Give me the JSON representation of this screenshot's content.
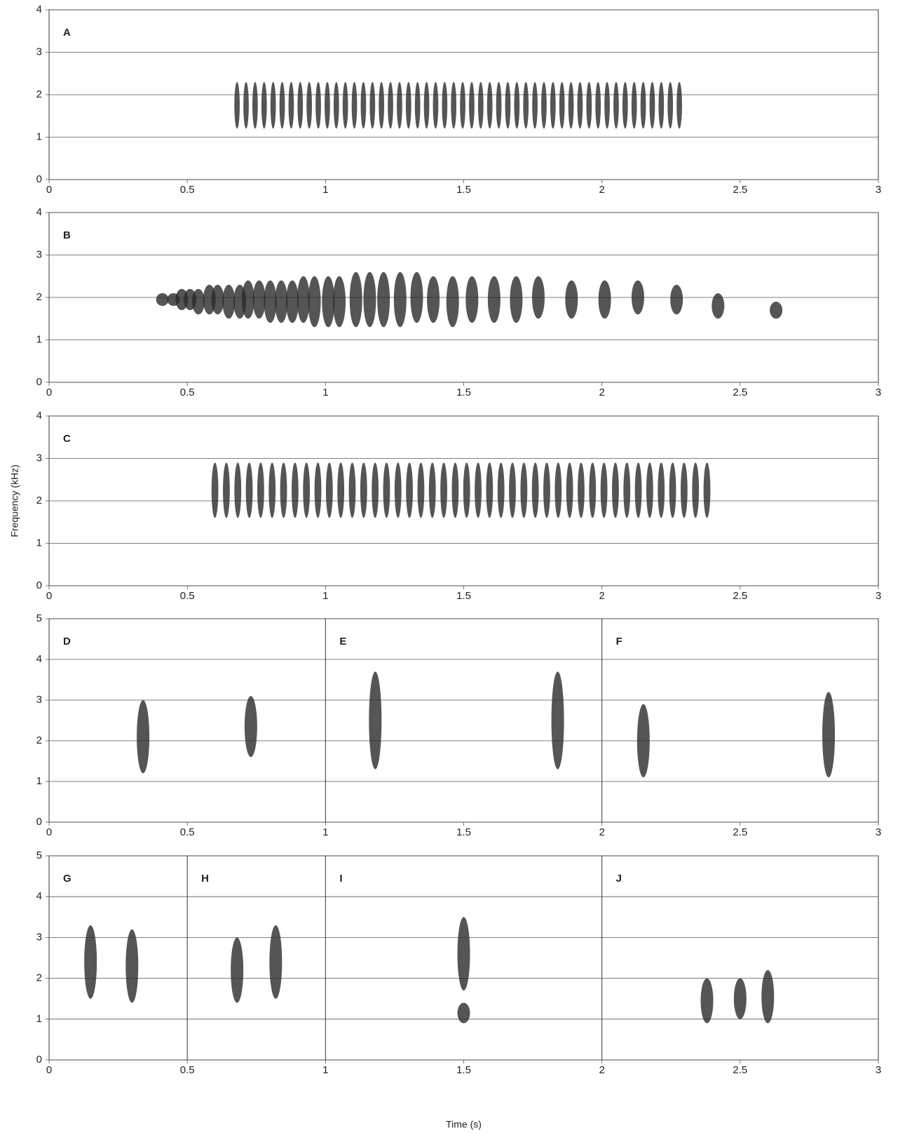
{
  "chart_data": [
    {
      "type": "spectrogram",
      "panels": [
        "A"
      ],
      "xlim": [
        0,
        3
      ],
      "xticks": [
        0,
        0.5,
        1,
        1.5,
        2,
        2.5,
        3
      ],
      "ylim": [
        0,
        4
      ],
      "yticks": [
        0,
        1,
        2,
        3,
        4
      ],
      "trills": [
        {
          "t": [
            0.68,
            2.28
          ],
          "count": 50,
          "f": [
            1.2,
            2.3
          ]
        }
      ]
    },
    {
      "type": "spectrogram",
      "panels": [
        "B"
      ],
      "xlim": [
        0,
        3
      ],
      "xticks": [
        0,
        0.5,
        1,
        1.5,
        2,
        2.5,
        3
      ],
      "ylim": [
        0,
        4
      ],
      "yticks": [
        0,
        1,
        2,
        3,
        4
      ],
      "notes": {
        "t": [
          0.41,
          0.45,
          0.48,
          0.51,
          0.54,
          0.58,
          0.61,
          0.65,
          0.69,
          0.72,
          0.76,
          0.8,
          0.84,
          0.88,
          0.92,
          0.96,
          1.01,
          1.05,
          1.11,
          1.16,
          1.21,
          1.27,
          1.33,
          1.39,
          1.46,
          1.53,
          1.61,
          1.69,
          1.77,
          1.89,
          2.01,
          2.13,
          2.27,
          2.42,
          2.63
        ],
        "f_low": [
          1.8,
          1.8,
          1.7,
          1.7,
          1.6,
          1.6,
          1.6,
          1.5,
          1.5,
          1.5,
          1.5,
          1.4,
          1.4,
          1.4,
          1.4,
          1.3,
          1.3,
          1.3,
          1.3,
          1.3,
          1.3,
          1.3,
          1.4,
          1.4,
          1.3,
          1.4,
          1.4,
          1.4,
          1.5,
          1.5,
          1.5,
          1.6,
          1.6,
          1.5,
          1.5
        ],
        "f_high": [
          2.1,
          2.1,
          2.2,
          2.2,
          2.2,
          2.3,
          2.3,
          2.3,
          2.3,
          2.4,
          2.4,
          2.4,
          2.4,
          2.4,
          2.5,
          2.5,
          2.5,
          2.5,
          2.6,
          2.6,
          2.6,
          2.6,
          2.6,
          2.5,
          2.5,
          2.5,
          2.5,
          2.5,
          2.5,
          2.4,
          2.4,
          2.4,
          2.3,
          2.1,
          1.9
        ]
      }
    },
    {
      "type": "spectrogram",
      "panels": [
        "C"
      ],
      "xlim": [
        0,
        3
      ],
      "xticks": [
        0,
        0.5,
        1,
        1.5,
        2,
        2.5,
        3
      ],
      "ylim": [
        0,
        4
      ],
      "yticks": [
        0,
        1,
        2,
        3,
        4
      ],
      "ylabel": "Frequency (kHz)",
      "trills": [
        {
          "t": [
            0.6,
            2.38
          ],
          "count": 44,
          "f": [
            1.6,
            2.9
          ]
        }
      ]
    },
    {
      "type": "spectrogram",
      "panels": [
        "D",
        "E",
        "F"
      ],
      "dividers": [
        1,
        2
      ],
      "xlim": [
        0,
        3
      ],
      "xticks": [
        0,
        0.5,
        1,
        1.5,
        2,
        2.5,
        3
      ],
      "ylim": [
        0,
        5
      ],
      "yticks": [
        0,
        1,
        2,
        3,
        4,
        5
      ],
      "notes": {
        "t": [
          0.34,
          0.73,
          1.18,
          1.84,
          2.15,
          2.82
        ],
        "f_low": [
          1.2,
          1.6,
          1.3,
          1.3,
          1.1,
          1.1
        ],
        "f_high": [
          3.0,
          3.1,
          3.7,
          3.7,
          2.9,
          3.2
        ]
      }
    },
    {
      "type": "spectrogram",
      "panels": [
        "G",
        "H",
        "I",
        "J"
      ],
      "dividers": [
        0.5,
        1,
        2
      ],
      "xlim": [
        0,
        3
      ],
      "xticks": [
        0,
        0.5,
        1,
        1.5,
        2,
        2.5,
        3
      ],
      "ylim": [
        0,
        5
      ],
      "yticks": [
        0,
        1,
        2,
        3,
        4,
        5
      ],
      "xlabel": "Time (s)",
      "notes": {
        "t": [
          0.15,
          0.3,
          0.68,
          0.82,
          1.5,
          1.5,
          2.38,
          2.5,
          2.6
        ],
        "f_low": [
          1.5,
          1.4,
          1.4,
          1.5,
          1.7,
          0.9,
          0.9,
          1.0,
          0.9
        ],
        "f_high": [
          3.3,
          3.2,
          3.0,
          3.3,
          3.5,
          1.4,
          2.0,
          2.0,
          2.2
        ]
      }
    }
  ]
}
